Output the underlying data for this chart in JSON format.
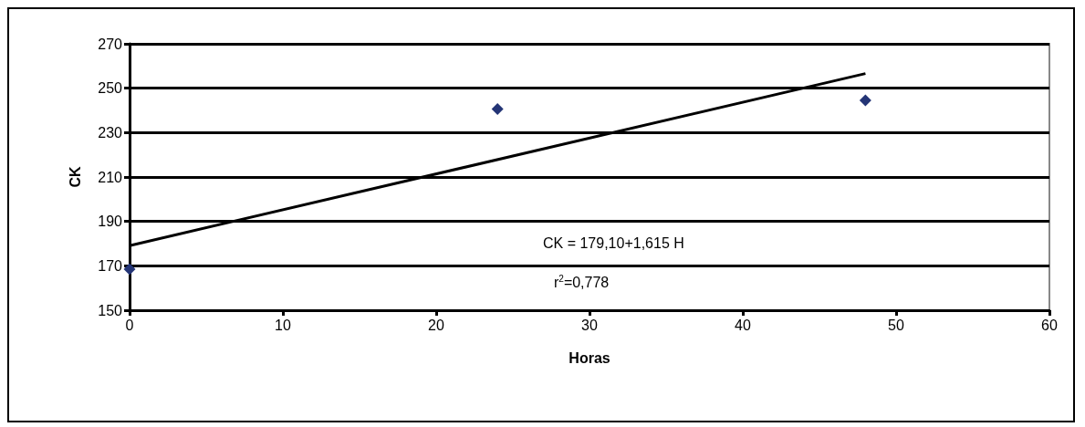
{
  "chart_data": {
    "type": "scatter",
    "xlabel": "Horas",
    "ylabel": "CK",
    "xlim": [
      0,
      60
    ],
    "xticks": [
      0,
      10,
      20,
      30,
      40,
      50,
      60
    ],
    "ylim": [
      150,
      270
    ],
    "yticks": [
      150,
      170,
      190,
      210,
      230,
      250,
      270
    ],
    "grid": "y",
    "series": [
      {
        "color": "#243576",
        "marker": "diamond",
        "x": [
          0,
          24,
          48
        ],
        "values": [
          168.5,
          240.6,
          244.5
        ]
      },
      {
        "type": "line",
        "color": "#000000",
        "marker": "none",
        "line_style": "solid",
        "x": [
          0,
          48
        ],
        "values": [
          179.1,
          256.6
        ]
      }
    ],
    "annotations": [
      "CK = 179,10+1,615 H",
      "r$^{2}$=0,778"
    ]
  }
}
